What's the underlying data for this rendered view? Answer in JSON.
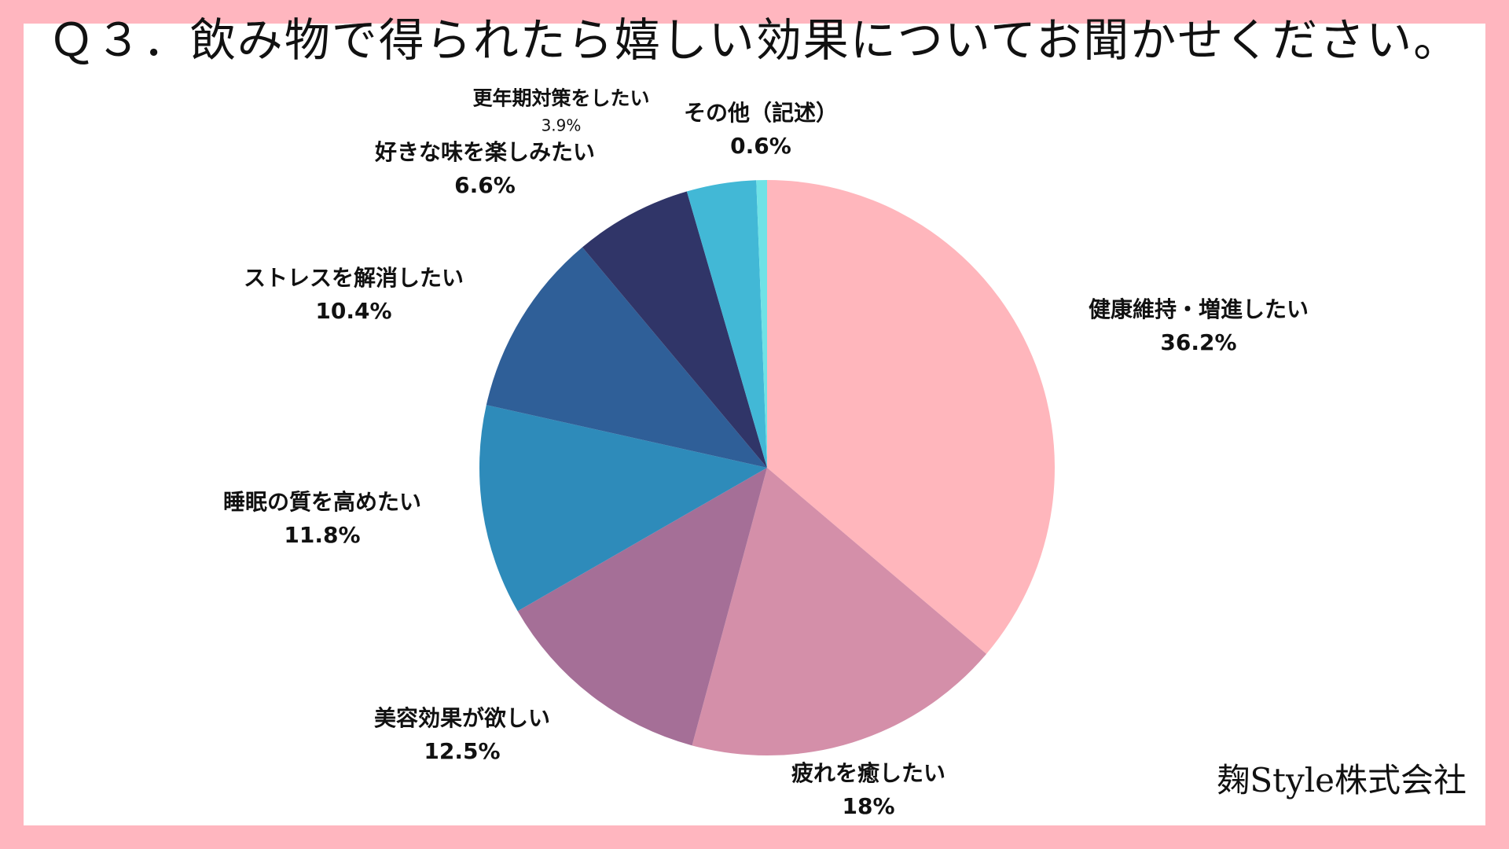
{
  "title": "Ｑ３．飲み物で得られたら嬉しい効果についてお聞かせください。",
  "company": "麹Style株式会社",
  "chart_data": {
    "type": "pie",
    "start_angle": "top",
    "direction": "clockwise",
    "slices": [
      {
        "label": "健康維持・増進したい",
        "value": 36.2,
        "value_label": "36.2%",
        "color": "#ffb6bc"
      },
      {
        "label": "疲れを癒したい",
        "value": 18,
        "value_label": "18%",
        "color": "#d48fa9"
      },
      {
        "label": "美容効果が欲しい",
        "value": 12.5,
        "value_label": "12.5%",
        "color": "#a56f97"
      },
      {
        "label": "睡眠の質を高めたい",
        "value": 11.8,
        "value_label": "11.8%",
        "color": "#2e8bba"
      },
      {
        "label": "ストレスを解消したい",
        "value": 10.4,
        "value_label": "10.4%",
        "color": "#2f5f98"
      },
      {
        "label": "好きな味を楽しみたい",
        "value": 6.6,
        "value_label": "6.6%",
        "color": "#303568"
      },
      {
        "label": "更年期対策をしたい",
        "value": 3.9,
        "value_label": "3.9%",
        "color": "#42b8d6"
      },
      {
        "label": "その他（記述）",
        "value": 0.6,
        "value_label": "0.6%",
        "color": "#6fe2e6"
      }
    ]
  }
}
